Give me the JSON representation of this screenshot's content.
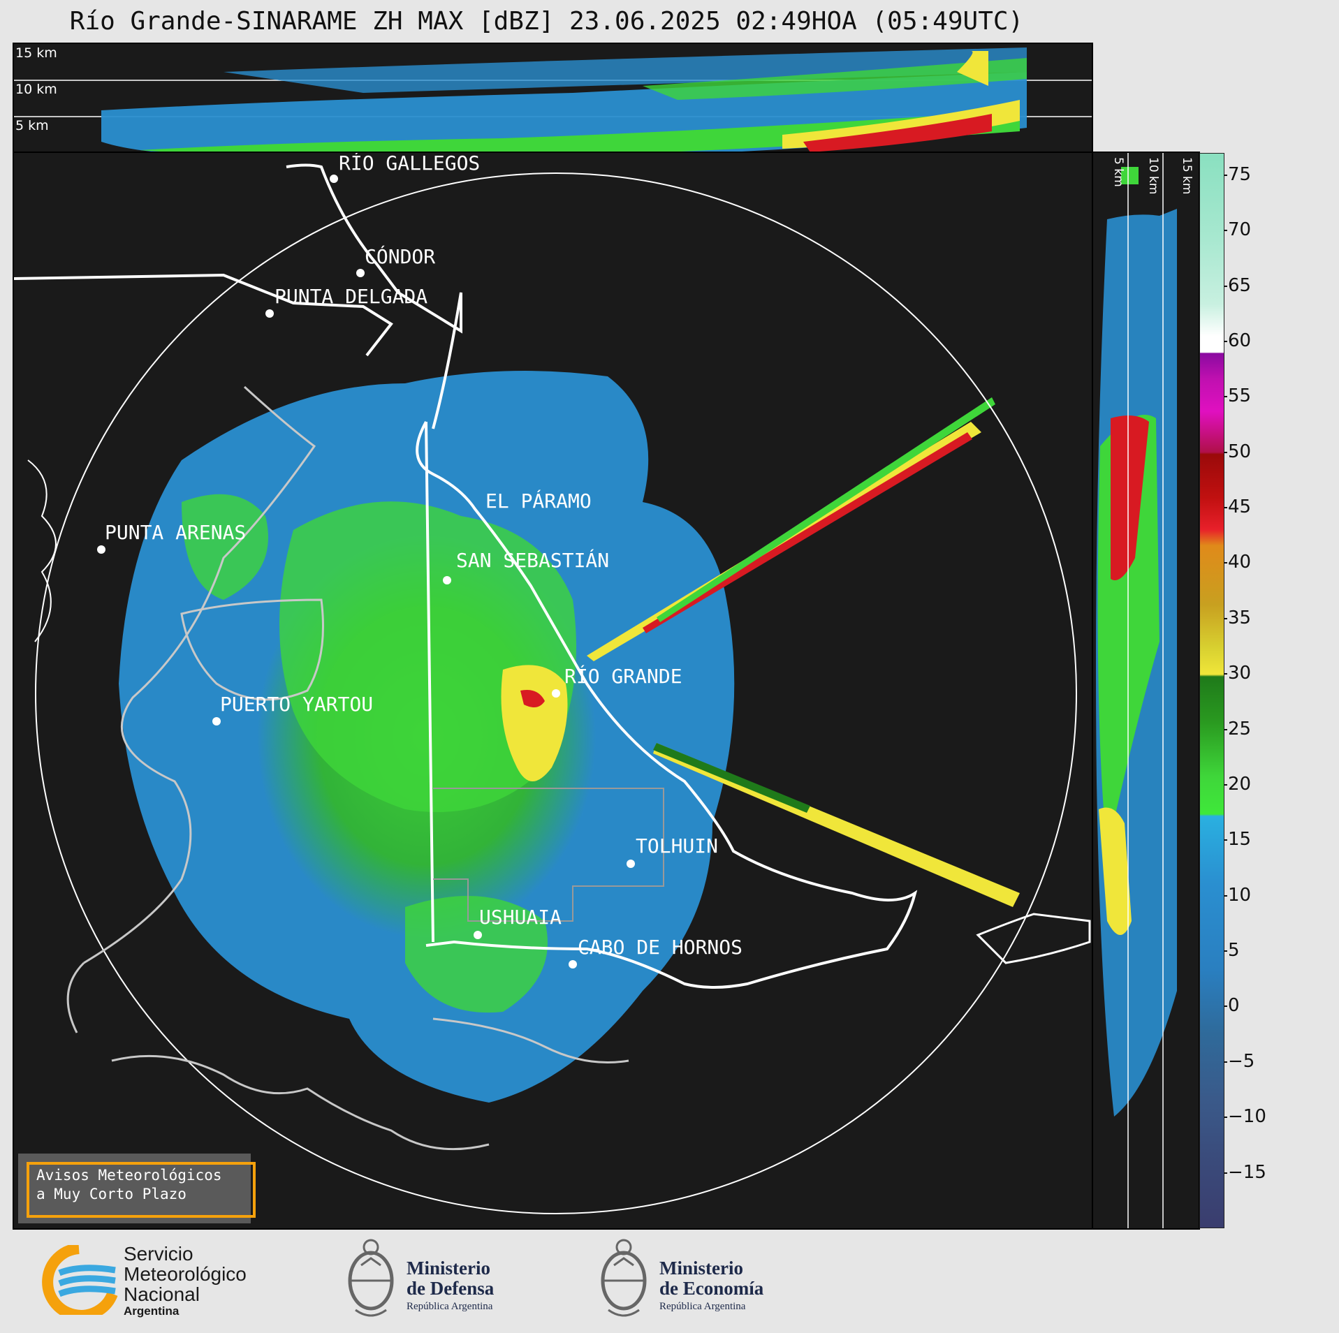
{
  "title": "Río Grande-SINARAME ZH MAX [dBZ] 23.06.2025 02:49HOA (05:49UTC)",
  "top_panel": {
    "altitude_labels": [
      "15 km",
      "10 km",
      "5 km"
    ]
  },
  "side_panel": {
    "altitude_labels": [
      "5 km",
      "10 km",
      "15 km"
    ]
  },
  "cities": [
    {
      "id": "rio-gallegos",
      "name": "RÍO GALLEGOS"
    },
    {
      "id": "condor",
      "name": "CÓNDOR"
    },
    {
      "id": "punta-delgada",
      "name": "PUNTA DELGADA"
    },
    {
      "id": "punta-arenas",
      "name": "PUNTA ARENAS"
    },
    {
      "id": "el-paramo",
      "name": "EL PÁRAMO"
    },
    {
      "id": "san-sebastian",
      "name": "SAN SEBASTIÁN"
    },
    {
      "id": "rio-grande",
      "name": "RÍO GRANDE"
    },
    {
      "id": "puerto-yartou",
      "name": "PUERTO YARTOU"
    },
    {
      "id": "tolhuin",
      "name": "TOLHUIN"
    },
    {
      "id": "ushuaia",
      "name": "USHUAIA"
    },
    {
      "id": "cabo-de-hornos",
      "name": "CABO DE HORNOS"
    }
  ],
  "colorbar": {
    "unit": "dBZ",
    "ticks": [
      "75",
      "70",
      "65",
      "60",
      "55",
      "50",
      "45",
      "40",
      "35",
      "30",
      "25",
      "20",
      "15",
      "10",
      "5",
      "0",
      "−5",
      "−10",
      "−15"
    ],
    "range": [
      -20,
      77
    ],
    "colors": {
      "low": "#3a3d6e",
      "light_blue": "#2a8fd0",
      "green": "#3fd63a",
      "dark_green": "#1f7a1a",
      "yellow": "#f0e63a",
      "orange": "#e08a1a",
      "red": "#d81a22",
      "dark_red": "#9a0a0a",
      "magenta": "#e010c0",
      "purple": "#8a0aa0",
      "white": "#ffffff",
      "mint": "#8ae0c0"
    }
  },
  "aviso": {
    "line1": "Avisos Meteorológicos",
    "line2": "a Muy Corto Plazo"
  },
  "footer": {
    "smn": {
      "line1": "Servicio",
      "line2": "Meteorológico",
      "line3": "Nacional",
      "line4": "Argentina",
      "logo_icon": "smn-logo-icon"
    },
    "defensa": {
      "line1": "Ministerio",
      "line2": "de Defensa",
      "line3": "República Argentina",
      "logo_icon": "national-shield-icon"
    },
    "economia": {
      "line1": "Ministerio",
      "line2": "de Economía",
      "line3": "República Argentina",
      "logo_icon": "national-shield-icon"
    }
  }
}
